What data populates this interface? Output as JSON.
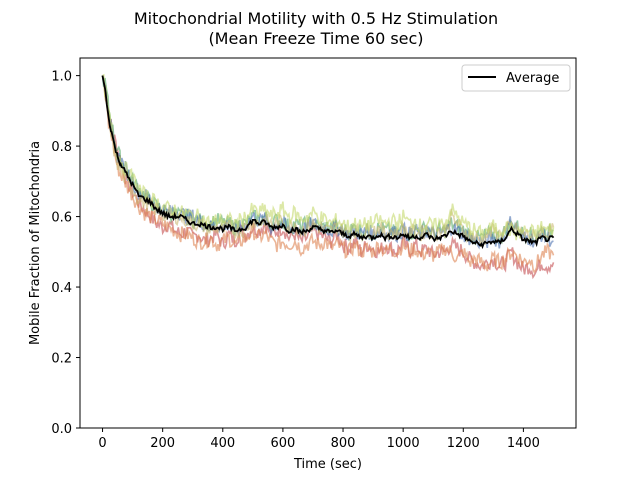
{
  "chart_data": {
    "type": "line",
    "title": "Mitochondrial Motility with 0.5 Hz Stimulation",
    "subtitle": "(Mean Freeze Time 60 sec)",
    "xlabel": "Time (sec)",
    "ylabel": "Mobile Fraction of Mitochondria",
    "xlim": [
      -75,
      1575
    ],
    "ylim": [
      0.0,
      1.05
    ],
    "x_ticks": [
      "0",
      "200",
      "400",
      "600",
      "800",
      "1000",
      "1200",
      "1400"
    ],
    "y_ticks": [
      "0.0",
      "0.2",
      "0.4",
      "0.6",
      "0.8",
      "1.0"
    ],
    "grid": false,
    "legend": {
      "position": "top-right",
      "entries": [
        "Average"
      ]
    },
    "x": [
      0,
      10,
      20,
      30,
      40,
      50,
      60,
      80,
      100,
      120,
      140,
      160,
      180,
      200,
      220,
      240,
      260,
      280,
      300,
      320,
      340,
      360,
      380,
      400,
      420,
      440,
      460,
      480,
      500,
      520,
      540,
      560,
      580,
      600,
      620,
      640,
      660,
      680,
      700,
      720,
      740,
      760,
      780,
      800,
      820,
      840,
      860,
      880,
      900,
      920,
      940,
      960,
      980,
      1000,
      1020,
      1040,
      1060,
      1080,
      1100,
      1120,
      1140,
      1160,
      1180,
      1200,
      1220,
      1240,
      1260,
      1280,
      1300,
      1320,
      1340,
      1360,
      1380,
      1400,
      1420,
      1440,
      1460,
      1480,
      1500
    ],
    "average": [
      1.0,
      0.95,
      0.88,
      0.84,
      0.8,
      0.77,
      0.75,
      0.72,
      0.69,
      0.66,
      0.65,
      0.64,
      0.62,
      0.61,
      0.6,
      0.6,
      0.6,
      0.59,
      0.58,
      0.58,
      0.575,
      0.57,
      0.57,
      0.565,
      0.57,
      0.56,
      0.565,
      0.57,
      0.59,
      0.58,
      0.585,
      0.57,
      0.57,
      0.575,
      0.56,
      0.565,
      0.555,
      0.56,
      0.57,
      0.565,
      0.56,
      0.555,
      0.56,
      0.55,
      0.545,
      0.55,
      0.54,
      0.545,
      0.54,
      0.55,
      0.54,
      0.545,
      0.54,
      0.55,
      0.54,
      0.545,
      0.54,
      0.55,
      0.535,
      0.54,
      0.545,
      0.56,
      0.55,
      0.545,
      0.53,
      0.525,
      0.52,
      0.525,
      0.53,
      0.525,
      0.54,
      0.565,
      0.55,
      0.535,
      0.53,
      0.525,
      0.54,
      0.535,
      0.54
    ],
    "series": [
      {
        "color": "#c44e52",
        "values": [
          1.0,
          0.96,
          0.9,
          0.85,
          0.82,
          0.79,
          0.76,
          0.7,
          0.67,
          0.64,
          0.62,
          0.6,
          0.58,
          0.57,
          0.58,
          0.56,
          0.55,
          0.56,
          0.54,
          0.55,
          0.53,
          0.54,
          0.55,
          0.52,
          0.55,
          0.53,
          0.56,
          0.55,
          0.57,
          0.56,
          0.58,
          0.55,
          0.56,
          0.57,
          0.54,
          0.55,
          0.53,
          0.54,
          0.56,
          0.55,
          0.54,
          0.53,
          0.55,
          0.52,
          0.51,
          0.53,
          0.5,
          0.52,
          0.51,
          0.5,
          0.52,
          0.51,
          0.5,
          0.53,
          0.5,
          0.52,
          0.5,
          0.51,
          0.49,
          0.5,
          0.5,
          0.52,
          0.51,
          0.5,
          0.48,
          0.47,
          0.46,
          0.47,
          0.48,
          0.46,
          0.47,
          0.5,
          0.47,
          0.45,
          0.46,
          0.44,
          0.47,
          0.46,
          0.47
        ]
      },
      {
        "color": "#dd8452",
        "values": [
          1.0,
          0.93,
          0.86,
          0.83,
          0.78,
          0.74,
          0.72,
          0.69,
          0.66,
          0.63,
          0.61,
          0.6,
          0.59,
          0.58,
          0.57,
          0.56,
          0.55,
          0.55,
          0.54,
          0.53,
          0.53,
          0.54,
          0.52,
          0.53,
          0.54,
          0.52,
          0.53,
          0.54,
          0.56,
          0.54,
          0.55,
          0.53,
          0.52,
          0.53,
          0.52,
          0.53,
          0.51,
          0.52,
          0.53,
          0.52,
          0.53,
          0.51,
          0.52,
          0.51,
          0.5,
          0.52,
          0.5,
          0.51,
          0.5,
          0.52,
          0.5,
          0.51,
          0.5,
          0.52,
          0.5,
          0.51,
          0.49,
          0.5,
          0.49,
          0.5,
          0.51,
          0.5,
          0.48,
          0.5,
          0.47,
          0.48,
          0.47,
          0.46,
          0.48,
          0.47,
          0.48,
          0.5,
          0.49,
          0.47,
          0.48,
          0.46,
          0.49,
          0.5,
          0.49
        ]
      },
      {
        "color": "#55a868",
        "values": [
          1.0,
          0.97,
          0.91,
          0.86,
          0.82,
          0.79,
          0.76,
          0.73,
          0.7,
          0.68,
          0.66,
          0.64,
          0.63,
          0.62,
          0.61,
          0.61,
          0.6,
          0.6,
          0.59,
          0.59,
          0.58,
          0.58,
          0.59,
          0.58,
          0.58,
          0.57,
          0.58,
          0.58,
          0.6,
          0.59,
          0.6,
          0.58,
          0.59,
          0.59,
          0.57,
          0.58,
          0.57,
          0.58,
          0.58,
          0.57,
          0.57,
          0.57,
          0.57,
          0.56,
          0.56,
          0.57,
          0.56,
          0.56,
          0.55,
          0.57,
          0.56,
          0.56,
          0.55,
          0.57,
          0.55,
          0.56,
          0.56,
          0.57,
          0.55,
          0.56,
          0.56,
          0.58,
          0.57,
          0.56,
          0.55,
          0.54,
          0.54,
          0.55,
          0.55,
          0.54,
          0.56,
          0.58,
          0.57,
          0.55,
          0.55,
          0.54,
          0.56,
          0.55,
          0.56
        ]
      },
      {
        "color": "#4c72b0",
        "values": [
          1.0,
          0.98,
          0.9,
          0.84,
          0.79,
          0.77,
          0.76,
          0.73,
          0.7,
          0.67,
          0.66,
          0.65,
          0.63,
          0.62,
          0.61,
          0.62,
          0.61,
          0.6,
          0.6,
          0.59,
          0.58,
          0.57,
          0.58,
          0.57,
          0.58,
          0.56,
          0.57,
          0.58,
          0.6,
          0.59,
          0.59,
          0.57,
          0.58,
          0.58,
          0.56,
          0.57,
          0.56,
          0.57,
          0.58,
          0.57,
          0.57,
          0.56,
          0.57,
          0.56,
          0.55,
          0.56,
          0.55,
          0.56,
          0.55,
          0.56,
          0.55,
          0.56,
          0.55,
          0.56,
          0.55,
          0.56,
          0.55,
          0.56,
          0.55,
          0.55,
          0.56,
          0.57,
          0.56,
          0.55,
          0.54,
          0.53,
          0.53,
          0.53,
          0.54,
          0.53,
          0.55,
          0.59,
          0.56,
          0.54,
          0.54,
          0.53,
          0.55,
          0.54,
          0.53
        ]
      },
      {
        "color": "#ccb974",
        "values": [
          1.0,
          0.94,
          0.87,
          0.82,
          0.78,
          0.75,
          0.73,
          0.7,
          0.68,
          0.65,
          0.64,
          0.63,
          0.62,
          0.61,
          0.6,
          0.6,
          0.6,
          0.59,
          0.58,
          0.58,
          0.57,
          0.56,
          0.57,
          0.56,
          0.57,
          0.56,
          0.56,
          0.57,
          0.59,
          0.58,
          0.59,
          0.58,
          0.58,
          0.59,
          0.57,
          0.58,
          0.56,
          0.57,
          0.58,
          0.57,
          0.56,
          0.56,
          0.57,
          0.56,
          0.55,
          0.56,
          0.55,
          0.56,
          0.56,
          0.57,
          0.55,
          0.56,
          0.55,
          0.57,
          0.55,
          0.56,
          0.55,
          0.57,
          0.55,
          0.56,
          0.56,
          0.6,
          0.58,
          0.56,
          0.55,
          0.54,
          0.53,
          0.55,
          0.56,
          0.55,
          0.56,
          0.57,
          0.56,
          0.55,
          0.55,
          0.54,
          0.56,
          0.55,
          0.57
        ]
      },
      {
        "color": "#c5d96d",
        "values": [
          1.0,
          0.95,
          0.89,
          0.85,
          0.81,
          0.78,
          0.76,
          0.73,
          0.71,
          0.68,
          0.66,
          0.65,
          0.64,
          0.63,
          0.62,
          0.62,
          0.61,
          0.61,
          0.6,
          0.6,
          0.59,
          0.58,
          0.59,
          0.59,
          0.59,
          0.58,
          0.59,
          0.6,
          0.62,
          0.61,
          0.62,
          0.6,
          0.61,
          0.62,
          0.6,
          0.61,
          0.59,
          0.6,
          0.61,
          0.6,
          0.59,
          0.58,
          0.59,
          0.58,
          0.57,
          0.58,
          0.57,
          0.58,
          0.58,
          0.59,
          0.58,
          0.59,
          0.58,
          0.6,
          0.58,
          0.59,
          0.57,
          0.58,
          0.57,
          0.58,
          0.58,
          0.62,
          0.6,
          0.58,
          0.57,
          0.56,
          0.55,
          0.56,
          0.57,
          0.56,
          0.57,
          0.56,
          0.55,
          0.56,
          0.56,
          0.55,
          0.57,
          0.56,
          0.57
        ]
      }
    ]
  }
}
